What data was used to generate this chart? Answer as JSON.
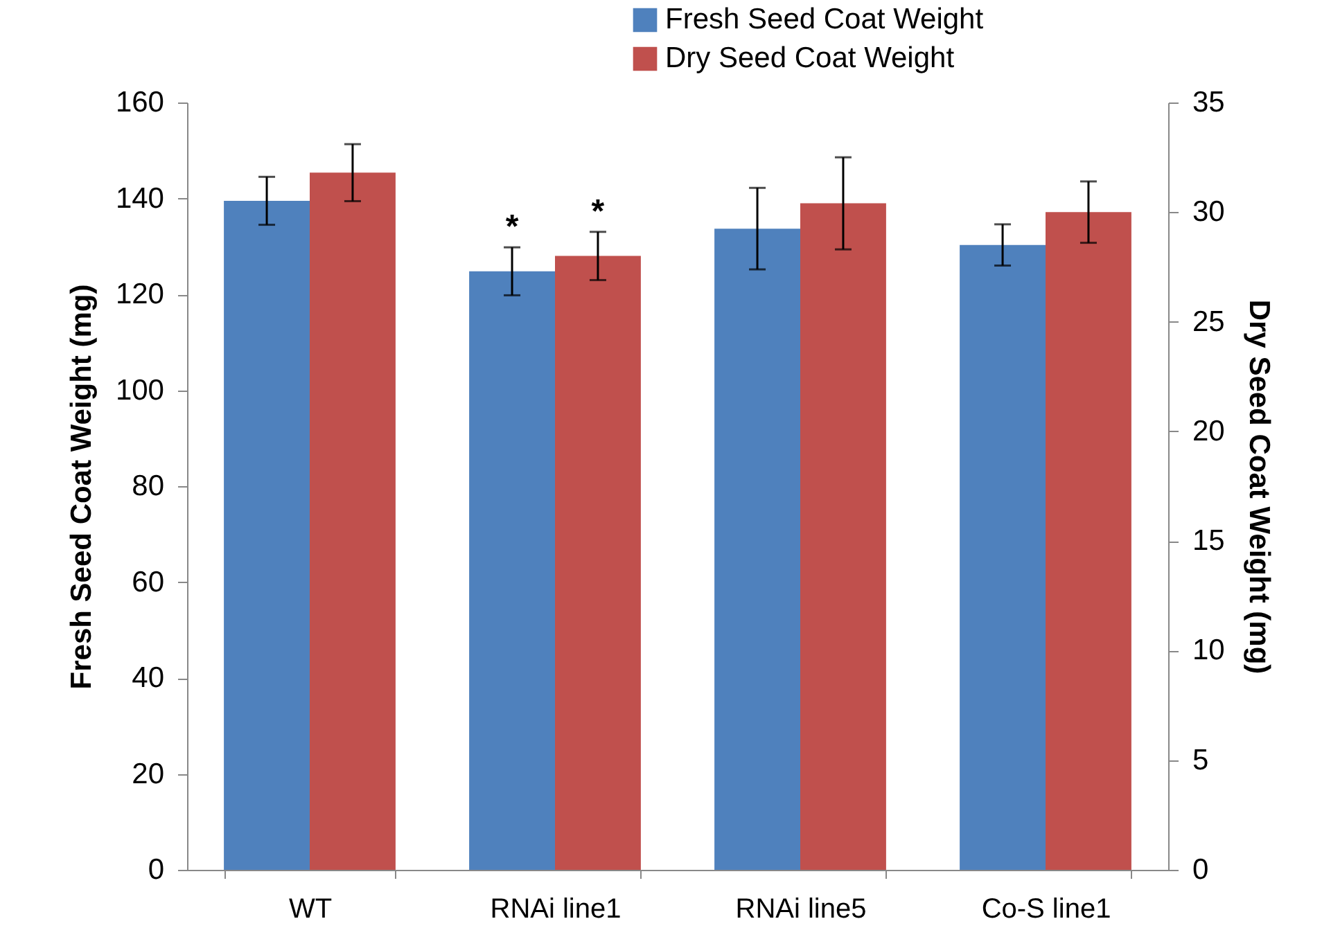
{
  "chart_data": {
    "type": "bar",
    "categories": [
      "WT",
      "RNAi line1",
      "RNAi line5",
      "Co-S line1"
    ],
    "ylabel": "Fresh Seed Coat Weight (mg)",
    "y2label": "Dry Seed Coat Weight (mg)",
    "ylim": [
      0,
      160
    ],
    "yticks": [
      0,
      20,
      40,
      60,
      80,
      100,
      120,
      140,
      160
    ],
    "y2lim": [
      0,
      35
    ],
    "y2ticks": [
      0,
      5,
      10,
      15,
      20,
      25,
      30,
      35
    ],
    "grid": false,
    "legend": "top right",
    "series": [
      {
        "name": "Fresh Seed Coat Weight",
        "color": "#4f81bd",
        "values": [
          139.5,
          124.8,
          133.7,
          130.3
        ],
        "errors": [
          5,
          5,
          8.5,
          4.3
        ],
        "value_labels": [
          null,
          "*",
          null,
          null
        ]
      },
      {
        "name": "Dry Seed Coat Weight",
        "color": "#c0504d",
        "axis": "y2",
        "values": [
          31.8,
          28.0,
          30.4,
          30.0
        ],
        "errors": [
          1.3,
          1.1,
          2.1,
          1.4
        ],
        "value_labels": [
          null,
          "*",
          null,
          null
        ]
      }
    ]
  }
}
